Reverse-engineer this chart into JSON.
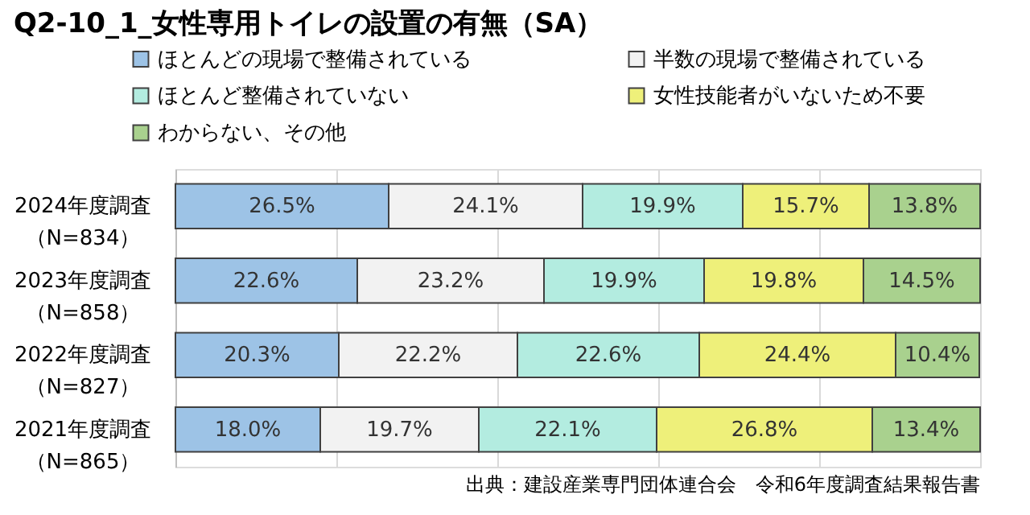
{
  "chart_data": {
    "type": "bar",
    "orientation": "horizontal",
    "stacked": true,
    "title": "Q2-10_1_女性専用トイレの設置の有無（SA）",
    "categories": [
      "2024年度調査（N=834）",
      "2023年度調査（N=858）",
      "2022年度調査（N=827）",
      "2021年度調査（N=865）"
    ],
    "series": [
      {
        "name": "ほとんどの現場で整備されている",
        "color": "#9dc3e6",
        "values": [
          26.5,
          22.6,
          20.3,
          18.0
        ],
        "value_labels": [
          "26.5%",
          "22.6%",
          "20.3%",
          "18.0%"
        ]
      },
      {
        "name": "半数の現場で整備されている",
        "color": "#f2f2f2",
        "values": [
          24.1,
          23.2,
          22.2,
          19.7
        ],
        "value_labels": [
          "24.1%",
          "23.2%",
          "22.2%",
          "19.7%"
        ]
      },
      {
        "name": "ほとんど整備されていない",
        "color": "#b3ece0",
        "values": [
          19.9,
          19.9,
          22.6,
          22.1
        ],
        "value_labels": [
          "19.9%",
          "19.9%",
          "22.6%",
          "22.1%"
        ]
      },
      {
        "name": "女性技能者がいないため不要",
        "color": "#eef07a",
        "values": [
          15.7,
          19.8,
          24.4,
          26.8
        ],
        "value_labels": [
          "15.7%",
          "19.8%",
          "24.4%",
          "26.8%"
        ]
      },
      {
        "name": "わからない、その他",
        "color": "#a9d18e",
        "values": [
          13.8,
          14.5,
          10.4,
          13.4
        ],
        "value_labels": [
          "13.8%",
          "14.5%",
          "10.4%",
          "13.4%"
        ]
      }
    ],
    "xlim": [
      0,
      100
    ],
    "xticks": [
      {
        "value": 0,
        "label": null
      },
      {
        "value": 20,
        "label": null
      },
      {
        "value": 40,
        "label": null
      },
      {
        "value": 60,
        "label": null
      },
      {
        "value": 80,
        "label": null
      },
      {
        "value": 100,
        "label": null
      }
    ],
    "grid": "x",
    "legend": "top",
    "tick_labels": "y",
    "annotations": [
      "出典：建設産業専門団体連合会　令和6年度調査結果報告書"
    ]
  }
}
